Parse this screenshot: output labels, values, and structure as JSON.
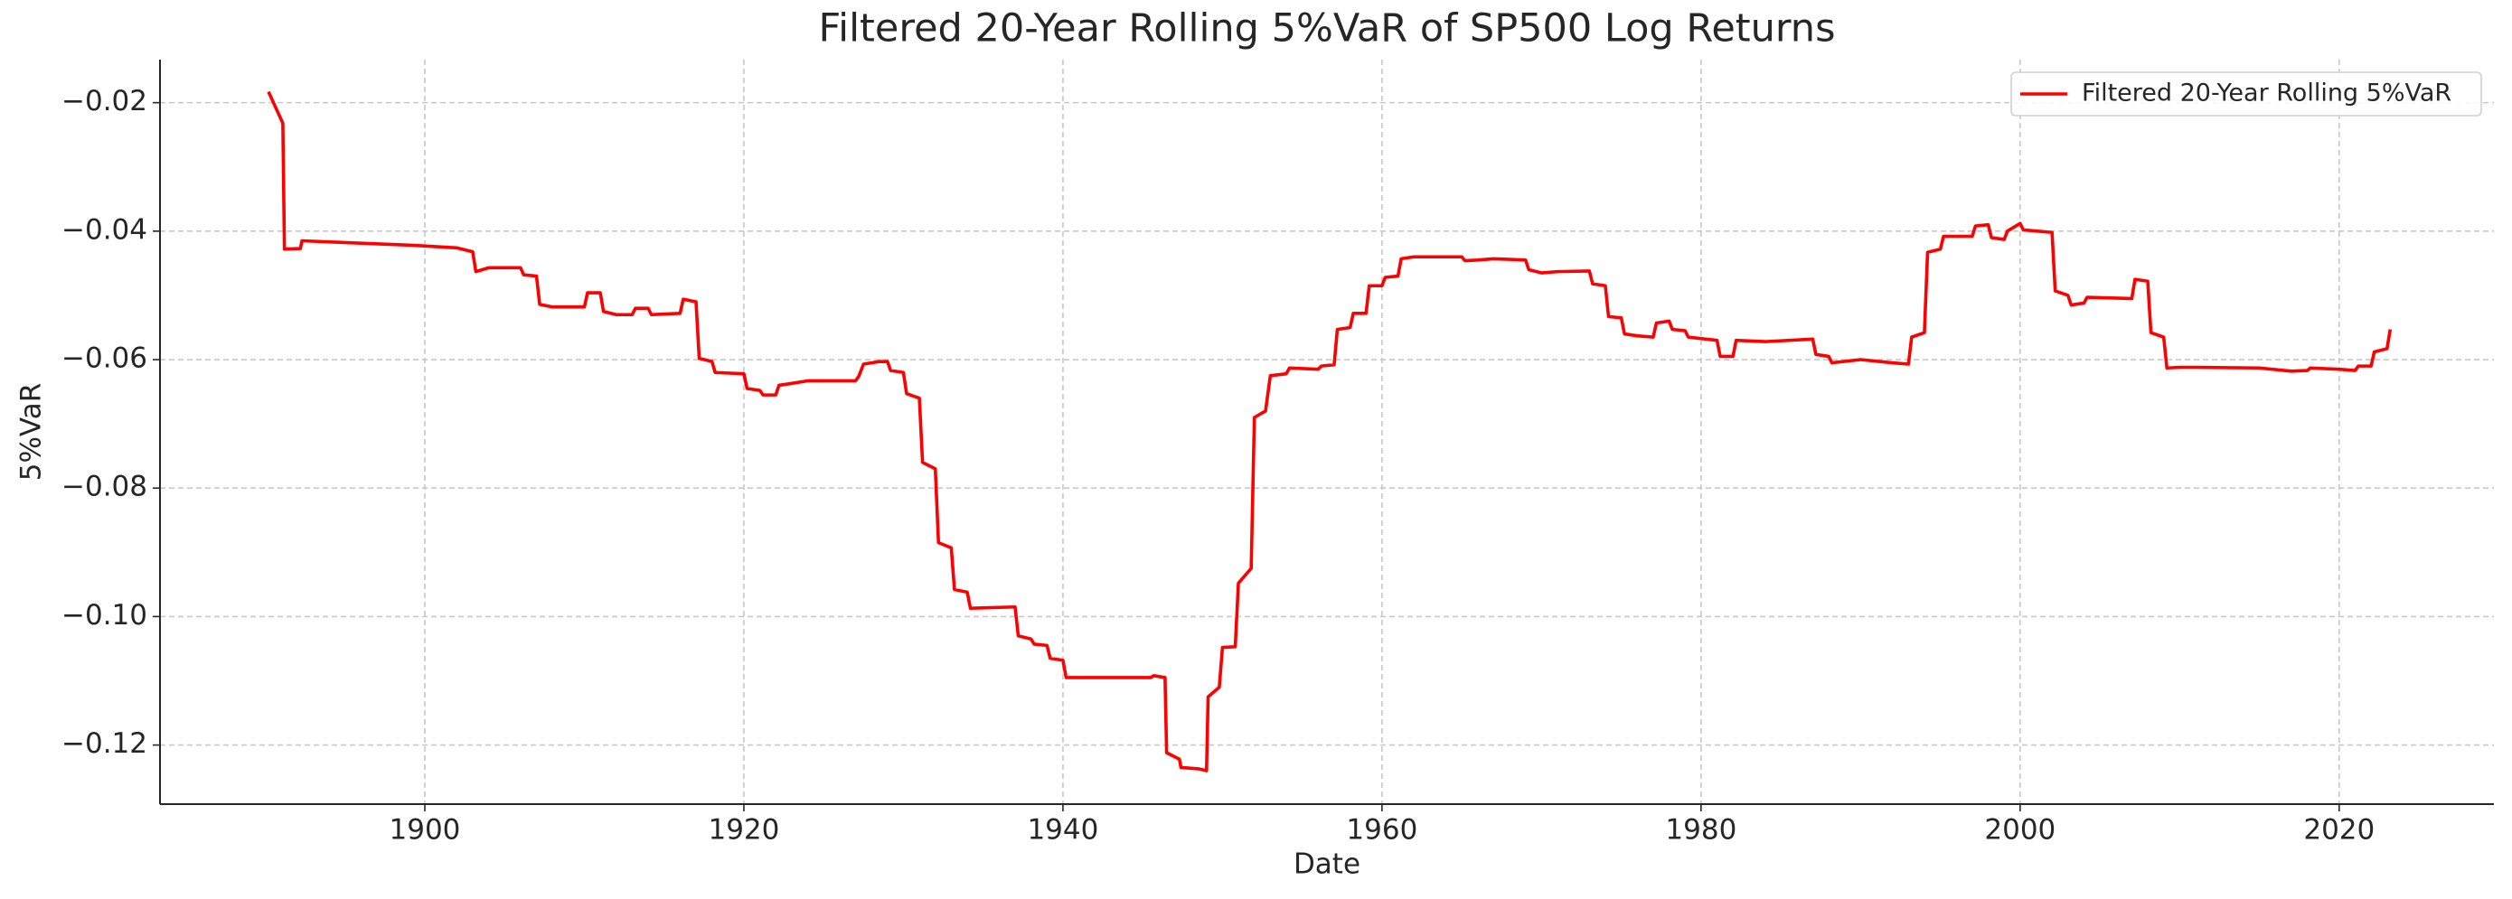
{
  "chart_data": {
    "type": "line",
    "title": "Filtered 20-Year Rolling 5%VaR of SP500 Log Returns",
    "xlabel": "Date",
    "ylabel": "5%VaR",
    "xlim": [
      1883.4,
      2029.7
    ],
    "ylim": [
      -0.1292,
      -0.0133
    ],
    "xticks": [
      1900,
      1920,
      1940,
      1960,
      1980,
      2000,
      2020
    ],
    "yticks": [
      {
        "value": -0.02,
        "label": "−0.02"
      },
      {
        "value": -0.04,
        "label": "−0.04"
      },
      {
        "value": -0.06,
        "label": "−0.06"
      },
      {
        "value": -0.08,
        "label": "−0.08"
      },
      {
        "value": -0.1,
        "label": "−0.10"
      },
      {
        "value": -0.12,
        "label": "−0.12"
      }
    ],
    "grid": true,
    "legend": "upper right",
    "x": [
      1890.2,
      1891.1,
      1891.2,
      1892.2,
      1892.3,
      1899.2,
      1902,
      1903,
      1903.2,
      1904,
      1906,
      1906.2,
      1907,
      1907.2,
      1908,
      1910,
      1910.2,
      1911,
      1911.2,
      1912,
      1913,
      1913.2,
      1914,
      1914.2,
      1916,
      1916.2,
      1917,
      1917.2,
      1918,
      1918.2,
      1920,
      1920.2,
      1921,
      1921.2,
      1922,
      1922.2,
      1923,
      1924,
      1927,
      1927.2,
      1927.5,
      1928.5,
      1929,
      1929.2,
      1930,
      1930.2,
      1931,
      1931.2,
      1932,
      1932.2,
      1933,
      1933.2,
      1934,
      1934.2,
      1937,
      1937.2,
      1938,
      1938.2,
      1939,
      1939.2,
      1940,
      1940.2,
      1945.5,
      1945.7,
      1946.4,
      1946.5,
      1947.3,
      1947.4,
      1948.5,
      1949,
      1949.1,
      1949.8,
      1950,
      1950.8,
      1951,
      1951.8,
      1952,
      1952.7,
      1953,
      1954,
      1954.2,
      1956,
      1956.2,
      1957,
      1957.2,
      1958,
      1958.2,
      1959,
      1959.2,
      1960,
      1960.2,
      1961,
      1961.2,
      1962,
      1965,
      1965.2,
      1966,
      1967,
      1968,
      1969,
      1969.2,
      1970,
      1971,
      1973,
      1973.2,
      1974,
      1974.2,
      1975,
      1975.2,
      1976,
      1977,
      1977.2,
      1978,
      1978.2,
      1979,
      1979.2,
      1981,
      1981.2,
      1982,
      1982.2,
      1984,
      1987,
      1987.2,
      1988,
      1988.2,
      1990,
      1992,
      1993,
      1993.2,
      1994,
      1994.2,
      1995,
      1995.2,
      1997,
      1997.2,
      1998,
      1998.2,
      1999,
      1999.2,
      2000,
      2000.2,
      2002,
      2002.2,
      2003,
      2003.2,
      2004,
      2004.2,
      2007,
      2007.2,
      2008,
      2008.2,
      2009,
      2009.2,
      2010,
      2011,
      2015,
      2017,
      2018,
      2018.2,
      2020,
      2021,
      2021.2,
      2022,
      2022.2,
      2023,
      2023.2
    ],
    "series": [
      {
        "name": "Filtered 20-Year Rolling 5%VaR",
        "color": "#ff0000",
        "values": [
          -0.0183,
          -0.0232,
          -0.0428,
          -0.0427,
          -0.0415,
          -0.0422,
          -0.0426,
          -0.0432,
          -0.0463,
          -0.0457,
          -0.0457,
          -0.0468,
          -0.047,
          -0.0514,
          -0.0518,
          -0.0518,
          -0.0496,
          -0.0496,
          -0.0525,
          -0.053,
          -0.053,
          -0.052,
          -0.052,
          -0.053,
          -0.0528,
          -0.0506,
          -0.051,
          -0.0598,
          -0.0603,
          -0.062,
          -0.0622,
          -0.0645,
          -0.0648,
          -0.0655,
          -0.0655,
          -0.064,
          -0.0637,
          -0.0633,
          -0.0633,
          -0.0626,
          -0.0607,
          -0.0603,
          -0.0603,
          -0.0617,
          -0.062,
          -0.0653,
          -0.066,
          -0.076,
          -0.077,
          -0.0885,
          -0.0893,
          -0.0958,
          -0.0962,
          -0.0987,
          -0.0985,
          -0.103,
          -0.1035,
          -0.1043,
          -0.1045,
          -0.1065,
          -0.1068,
          -0.1095,
          -0.1095,
          -0.1092,
          -0.1095,
          -0.1212,
          -0.1222,
          -0.1235,
          -0.1237,
          -0.124,
          -0.1125,
          -0.111,
          -0.1048,
          -0.1047,
          -0.0948,
          -0.0925,
          -0.069,
          -0.068,
          -0.0625,
          -0.0622,
          -0.0613,
          -0.0615,
          -0.061,
          -0.0608,
          -0.0553,
          -0.055,
          -0.0528,
          -0.0528,
          -0.0485,
          -0.0485,
          -0.0472,
          -0.047,
          -0.0443,
          -0.044,
          -0.044,
          -0.0446,
          -0.0445,
          -0.0443,
          -0.0444,
          -0.0445,
          -0.046,
          -0.0465,
          -0.0463,
          -0.0462,
          -0.0482,
          -0.0485,
          -0.0533,
          -0.0535,
          -0.056,
          -0.0563,
          -0.0565,
          -0.0543,
          -0.054,
          -0.0553,
          -0.0555,
          -0.0565,
          -0.057,
          -0.0595,
          -0.0595,
          -0.057,
          -0.0572,
          -0.0568,
          -0.0592,
          -0.0595,
          -0.0605,
          -0.06,
          -0.0605,
          -0.0607,
          -0.0565,
          -0.0558,
          -0.0433,
          -0.0428,
          -0.0408,
          -0.0408,
          -0.0392,
          -0.039,
          -0.041,
          -0.0413,
          -0.04,
          -0.0388,
          -0.0398,
          -0.0402,
          -0.0493,
          -0.05,
          -0.0515,
          -0.0512,
          -0.0503,
          -0.0505,
          -0.0475,
          -0.0478,
          -0.0558,
          -0.0565,
          -0.0613,
          -0.0612,
          -0.0612,
          -0.0613,
          -0.0618,
          -0.0617,
          -0.0613,
          -0.0615,
          -0.0617,
          -0.061,
          -0.061,
          -0.0588,
          -0.0583,
          -0.0553
        ]
      }
    ]
  }
}
